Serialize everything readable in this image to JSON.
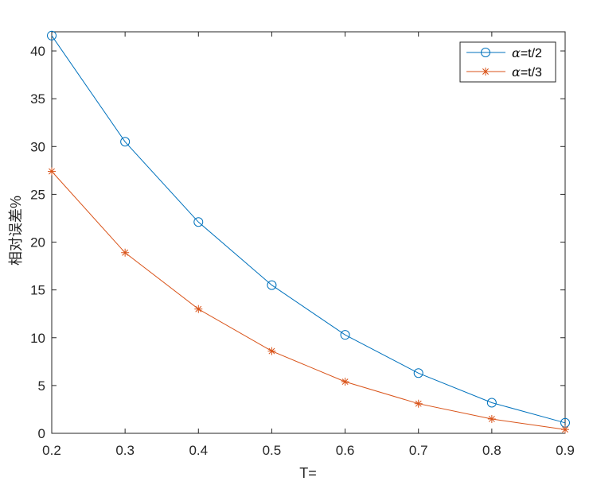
{
  "chart_data": {
    "type": "line",
    "title": "",
    "xlabel": "T=",
    "ylabel": "相对误差%",
    "xlim": [
      0.2,
      0.9
    ],
    "ylim": [
      0,
      42
    ],
    "x": [
      0.2,
      0.3,
      0.4,
      0.5,
      0.6,
      0.7,
      0.8,
      0.9
    ],
    "x_tick_labels": [
      "0.2",
      "0.3",
      "0.4",
      "0.5",
      "0.6",
      "0.7",
      "0.8",
      "0.9"
    ],
    "y_ticks": [
      0,
      5,
      10,
      15,
      20,
      25,
      30,
      35,
      40
    ],
    "y_tick_labels": [
      "0",
      "5",
      "10",
      "15",
      "20",
      "25",
      "30",
      "35",
      "40"
    ],
    "grid": false,
    "legend_position": "top-right",
    "series": [
      {
        "name": "α=t/2",
        "name_symbol": "α",
        "name_rest": "=t/2",
        "marker": "circle",
        "color": "#0072BD",
        "values": [
          41.6,
          30.5,
          22.1,
          15.5,
          10.3,
          6.3,
          3.2,
          1.1
        ]
      },
      {
        "name": "α=t/3",
        "name_symbol": "α",
        "name_rest": "=t/3",
        "marker": "asterisk",
        "color": "#D95319",
        "values": [
          27.4,
          18.9,
          13.0,
          8.6,
          5.4,
          3.1,
          1.5,
          0.4
        ]
      }
    ]
  }
}
